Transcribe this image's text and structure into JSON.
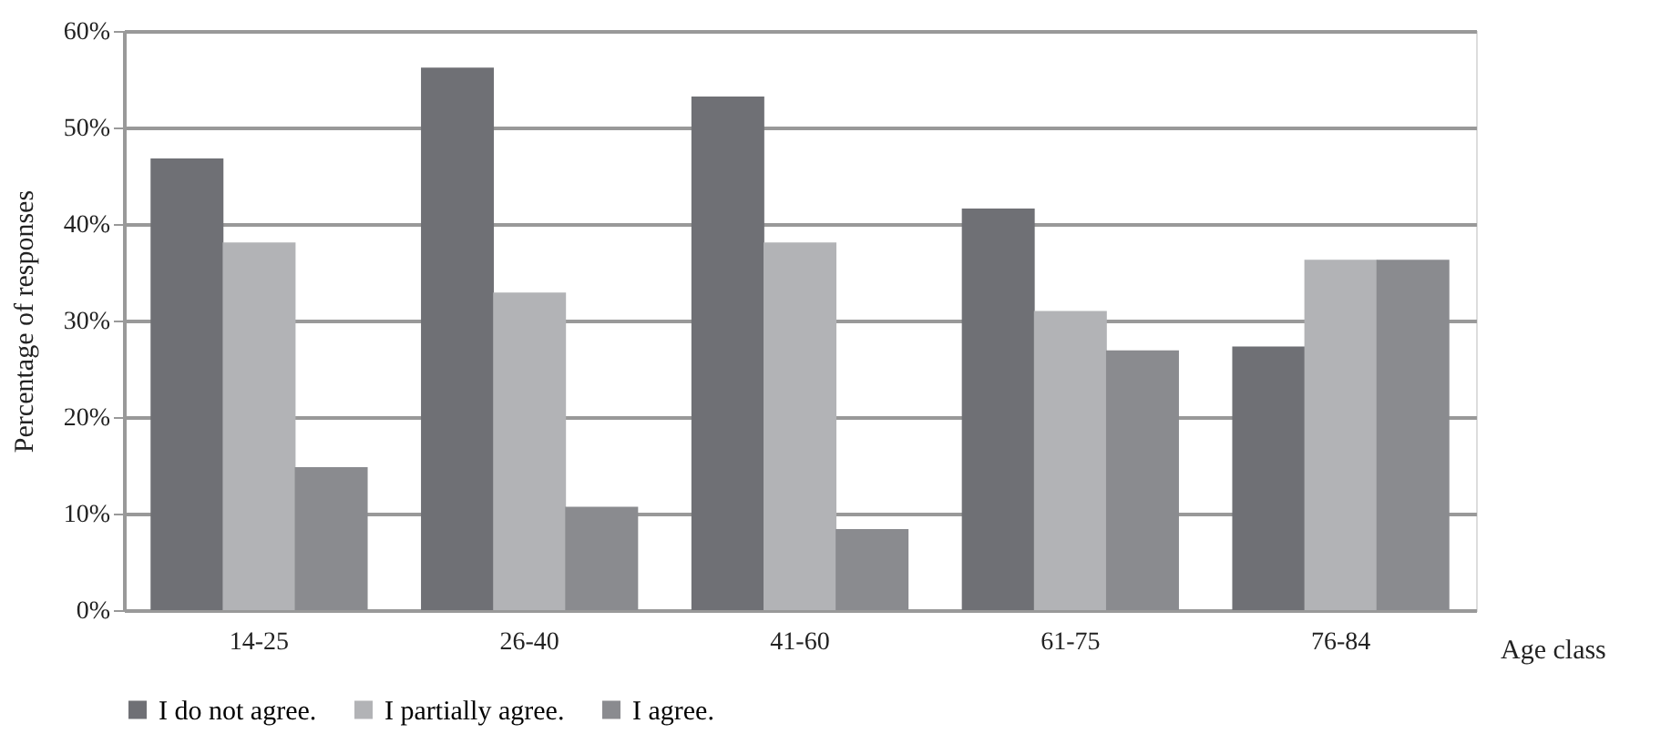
{
  "chart_data": {
    "type": "bar",
    "xlabel": "Age class",
    "ylabel": "Percentage of responses",
    "categories": [
      "14-25",
      "26-40",
      "41-60",
      "61-75",
      "76-84"
    ],
    "series": [
      {
        "name": "I do not agree.",
        "color": "#6f7075",
        "values": [
          46.8,
          56.2,
          53.2,
          41.6,
          27.3
        ]
      },
      {
        "name": "I partially agree.",
        "color": "#b2b3b6",
        "values": [
          38.1,
          32.9,
          38.1,
          31.0,
          36.3
        ]
      },
      {
        "name": "I agree.",
        "color": "#8a8b8f",
        "values": [
          14.8,
          10.7,
          8.4,
          26.9,
          36.3
        ]
      }
    ],
    "ylim": [
      0,
      60
    ],
    "yticks": [
      {
        "value": 0,
        "label": "0%"
      },
      {
        "value": 10,
        "label": "10%"
      },
      {
        "value": 20,
        "label": "20%"
      },
      {
        "value": 30,
        "label": "30%"
      },
      {
        "value": 40,
        "label": "40%"
      },
      {
        "value": 50,
        "label": "50%"
      },
      {
        "value": 60,
        "label": "60%"
      }
    ],
    "grid": "y",
    "legend": "bottom"
  }
}
